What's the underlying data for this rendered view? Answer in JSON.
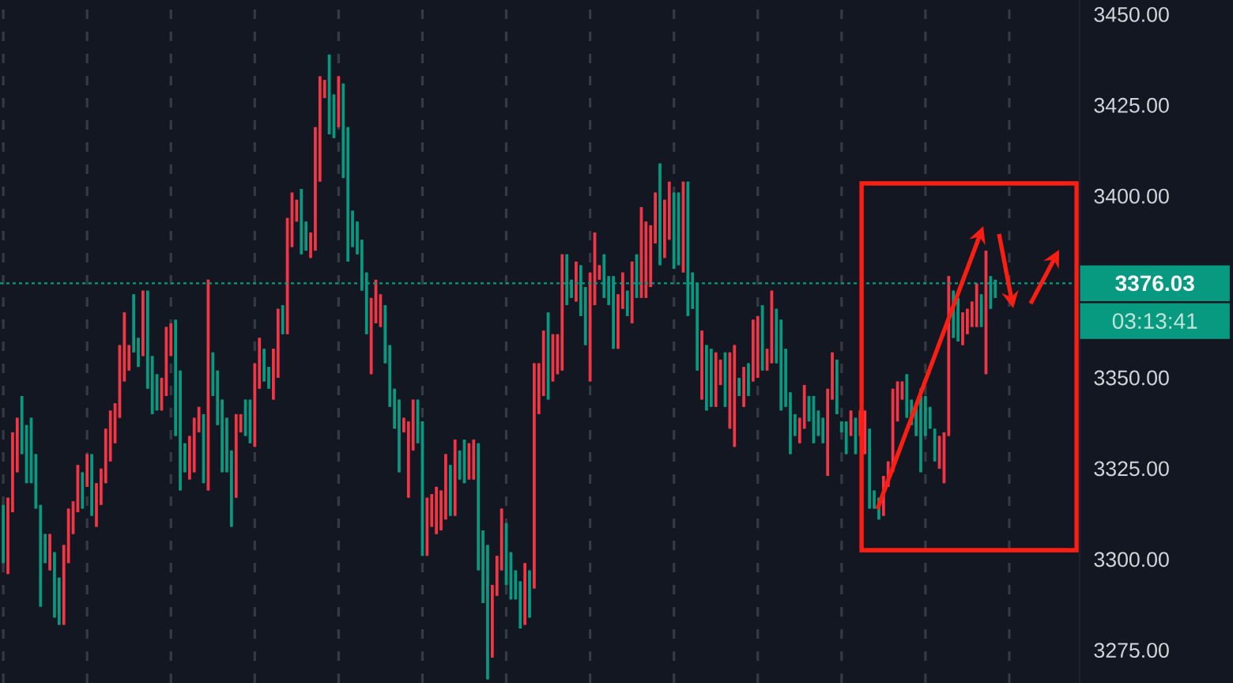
{
  "chart_data": {
    "type": "candlestick",
    "categories": [
      null,
      null,
      null,
      null,
      null,
      null,
      null,
      null,
      null,
      null,
      null,
      null,
      null,
      null,
      null,
      null,
      null,
      null,
      null,
      null,
      null,
      null,
      null,
      null,
      null,
      null,
      null,
      null,
      null,
      null,
      null,
      null,
      null,
      null,
      null,
      null,
      null,
      null,
      null,
      null,
      null,
      null,
      null,
      null,
      null,
      null,
      null,
      null,
      null,
      null,
      null,
      null,
      null,
      null,
      null,
      null,
      null,
      null,
      null,
      null,
      null,
      null,
      null,
      null,
      null,
      null,
      null,
      null,
      null,
      null,
      null,
      null,
      null,
      null,
      null,
      null,
      null,
      null,
      null,
      null,
      null,
      null,
      null,
      null,
      null,
      null,
      null,
      null,
      null,
      null,
      null,
      null,
      null,
      null,
      null,
      null,
      null,
      null,
      null,
      null,
      null,
      null,
      null,
      null,
      null,
      null,
      null,
      null,
      null,
      null,
      null,
      null,
      null,
      null,
      null,
      null,
      null,
      null,
      null,
      null,
      null,
      null,
      null,
      null,
      null,
      null,
      null,
      null,
      null,
      null,
      null,
      null,
      null,
      null,
      null,
      null,
      null,
      null,
      null,
      null,
      null,
      null,
      null,
      null,
      null,
      null,
      null,
      null,
      null,
      null,
      null,
      null,
      null,
      null,
      null,
      null,
      null,
      null,
      null,
      null,
      null,
      null,
      null,
      null,
      null,
      null,
      null,
      null,
      null,
      null,
      null,
      null,
      null,
      null,
      null,
      null,
      null,
      null,
      null,
      null,
      null,
      null,
      null,
      null,
      null,
      null,
      null,
      null,
      null,
      null,
      null,
      null,
      null,
      null,
      null,
      null,
      null,
      null,
      null,
      null,
      null,
      null,
      null,
      null,
      null,
      null,
      null,
      null,
      null,
      null,
      null,
      null,
      null,
      null
    ],
    "ohlc": [
      [
        3315,
        3315,
        3299,
        3299
      ],
      [
        3296,
        3317,
        3296,
        3317
      ],
      [
        3313,
        3335,
        3313,
        3335
      ],
      [
        3324,
        3339,
        3324,
        3339
      ],
      [
        3345,
        3345,
        3329,
        3329
      ],
      [
        3337,
        3337,
        3321,
        3321
      ],
      [
        3339,
        3339,
        3321,
        3321
      ],
      [
        3329,
        3329,
        3314,
        3314
      ],
      [
        3315,
        3315,
        3287,
        3287
      ],
      [
        3307,
        3307,
        3299,
        3299
      ],
      [
        3297,
        3307,
        3297,
        3307
      ],
      [
        3302,
        3302,
        3284,
        3284
      ],
      [
        3295,
        3295,
        3282,
        3282
      ],
      [
        3282,
        3304,
        3282,
        3304
      ],
      [
        3299,
        3314,
        3299,
        3314
      ],
      [
        3307,
        3316,
        3307,
        3316
      ],
      [
        3313,
        3326,
        3313,
        3326
      ],
      [
        3324,
        3324,
        3314,
        3314
      ],
      [
        3320,
        3329,
        3320,
        3329
      ],
      [
        3329,
        3329,
        3312,
        3312
      ],
      [
        3309,
        3321,
        3309,
        3321
      ],
      [
        3315,
        3325,
        3315,
        3325
      ],
      [
        3321,
        3336,
        3321,
        3336
      ],
      [
        3327,
        3341,
        3327,
        3341
      ],
      [
        3332,
        3343,
        3332,
        3343
      ],
      [
        3339,
        3359,
        3339,
        3359
      ],
      [
        3349,
        3368,
        3349,
        3368
      ],
      [
        3352,
        3359,
        3352,
        3359
      ],
      [
        3373,
        3373,
        3357,
        3357
      ],
      [
        3361,
        3361,
        3353,
        3353
      ],
      [
        3356,
        3374,
        3356,
        3374
      ],
      [
        3374,
        3374,
        3347,
        3347
      ],
      [
        3356,
        3356,
        3340,
        3340
      ],
      [
        3351,
        3351,
        3341,
        3341
      ],
      [
        3341,
        3350,
        3341,
        3350
      ],
      [
        3345,
        3364,
        3345,
        3364
      ],
      [
        3356,
        3365,
        3356,
        3365
      ],
      [
        3366,
        3366,
        3334,
        3334
      ],
      [
        3352,
        3352,
        3319,
        3319
      ],
      [
        3332,
        3332,
        3324,
        3324
      ],
      [
        3322,
        3334,
        3322,
        3334
      ],
      [
        3324,
        3339,
        3324,
        3339
      ],
      [
        3335,
        3342,
        3335,
        3342
      ],
      [
        3340,
        3340,
        3321,
        3321
      ],
      [
        3319,
        3377,
        3319,
        3377
      ],
      [
        3357,
        3357,
        3345,
        3345
      ],
      [
        3352,
        3352,
        3337,
        3337
      ],
      [
        3344,
        3344,
        3324,
        3324
      ],
      [
        3339,
        3339,
        3324,
        3324
      ],
      [
        3330,
        3330,
        3309,
        3309
      ],
      [
        3317,
        3340,
        3317,
        3340
      ],
      [
        3335,
        3340,
        3335,
        3340
      ],
      [
        3344,
        3344,
        3334,
        3334
      ],
      [
        3344,
        3344,
        3332,
        3332
      ],
      [
        3331,
        3354,
        3331,
        3354
      ],
      [
        3347,
        3361,
        3347,
        3361
      ],
      [
        3358,
        3358,
        3349,
        3349
      ],
      [
        3353,
        3353,
        3347,
        3347
      ],
      [
        3344,
        3358,
        3344,
        3358
      ],
      [
        3350,
        3369,
        3350,
        3369
      ],
      [
        3370,
        3370,
        3362,
        3362
      ],
      [
        3362,
        3394,
        3362,
        3394
      ],
      [
        3386,
        3401,
        3386,
        3401
      ],
      [
        3393,
        3399,
        3393,
        3399
      ],
      [
        3402,
        3402,
        3384,
        3384
      ],
      [
        3393,
        3393,
        3385,
        3385
      ],
      [
        3383,
        3390,
        3383,
        3390
      ],
      [
        3385,
        3419,
        3385,
        3419
      ],
      [
        3404,
        3433,
        3404,
        3433
      ],
      [
        3427,
        3432,
        3427,
        3432
      ],
      [
        3439,
        3439,
        3417,
        3417
      ],
      [
        3428,
        3428,
        3416,
        3416
      ],
      [
        3419,
        3433,
        3419,
        3433
      ],
      [
        3431,
        3431,
        3405,
        3405
      ],
      [
        3419,
        3419,
        3382,
        3382
      ],
      [
        3396,
        3396,
        3386,
        3386
      ],
      [
        3393,
        3393,
        3384,
        3384
      ],
      [
        3388,
        3388,
        3374,
        3374
      ],
      [
        3379,
        3379,
        3362,
        3362
      ],
      [
        3351,
        3372,
        3351,
        3372
      ],
      [
        3365,
        3377,
        3365,
        3377
      ],
      [
        3364,
        3373,
        3364,
        3373
      ],
      [
        3370,
        3370,
        3354,
        3354
      ],
      [
        3359,
        3359,
        3342,
        3342
      ],
      [
        3347,
        3347,
        3336,
        3336
      ],
      [
        3344,
        3344,
        3324,
        3324
      ],
      [
        3335,
        3339,
        3335,
        3339
      ],
      [
        3317,
        3338,
        3317,
        3338
      ],
      [
        3330,
        3344,
        3330,
        3344
      ],
      [
        3344,
        3344,
        3332,
        3332
      ],
      [
        3338,
        3338,
        3301,
        3301
      ],
      [
        3301,
        3317,
        3301,
        3317
      ],
      [
        3309,
        3318,
        3309,
        3318
      ],
      [
        3307,
        3320,
        3307,
        3320
      ],
      [
        3308,
        3319,
        3308,
        3319
      ],
      [
        3311,
        3329,
        3311,
        3329
      ],
      [
        3326,
        3326,
        3312,
        3312
      ],
      [
        3312,
        3333,
        3312,
        3333
      ],
      [
        3330,
        3330,
        3322,
        3322
      ],
      [
        3333,
        3333,
        3321,
        3321
      ],
      [
        3322,
        3332,
        3322,
        3332
      ],
      [
        3322,
        3333,
        3322,
        3333
      ],
      [
        3332,
        3332,
        3297,
        3297
      ],
      [
        3308,
        3308,
        3288,
        3288
      ],
      [
        3304,
        3304,
        3267,
        3267
      ],
      [
        3273,
        3293,
        3273,
        3293
      ],
      [
        3290,
        3301,
        3290,
        3301
      ],
      [
        3297,
        3314,
        3297,
        3314
      ],
      [
        3310,
        3310,
        3293,
        3293
      ],
      [
        3302,
        3302,
        3289,
        3289
      ],
      [
        3297,
        3297,
        3289,
        3289
      ],
      [
        3294,
        3294,
        3281,
        3281
      ],
      [
        3282,
        3299,
        3282,
        3299
      ],
      [
        3297,
        3297,
        3284,
        3284
      ],
      [
        3292,
        3354,
        3292,
        3354
      ],
      [
        3340,
        3354,
        3340,
        3354
      ],
      [
        3345,
        3363,
        3345,
        3363
      ],
      [
        3368,
        3368,
        3344,
        3344
      ],
      [
        3349,
        3362,
        3349,
        3362
      ],
      [
        3351,
        3362,
        3351,
        3362
      ],
      [
        3352,
        3384,
        3352,
        3384
      ],
      [
        3384,
        3384,
        3370,
        3370
      ],
      [
        3377,
        3377,
        3372,
        3372
      ],
      [
        3371,
        3382,
        3371,
        3382
      ],
      [
        3381,
        3381,
        3367,
        3367
      ],
      [
        3375,
        3375,
        3359,
        3359
      ],
      [
        3349,
        3379,
        3349,
        3379
      ],
      [
        3370,
        3390,
        3370,
        3390
      ],
      [
        3377,
        3381,
        3377,
        3381
      ],
      [
        3384,
        3384,
        3372,
        3372
      ],
      [
        3378,
        3378,
        3370,
        3370
      ],
      [
        3378,
        3378,
        3358,
        3358
      ],
      [
        3358,
        3373,
        3358,
        3373
      ],
      [
        3369,
        3379,
        3369,
        3379
      ],
      [
        3374,
        3374,
        3367,
        3367
      ],
      [
        3365,
        3382,
        3365,
        3382
      ],
      [
        3384,
        3384,
        3372,
        3372
      ],
      [
        3372,
        3397,
        3372,
        3397
      ],
      [
        3372,
        3393,
        3372,
        3393
      ],
      [
        3375,
        3392,
        3375,
        3392
      ],
      [
        3387,
        3401,
        3387,
        3401
      ],
      [
        3409,
        3409,
        3381,
        3381
      ],
      [
        3383,
        3399,
        3383,
        3399
      ],
      [
        3388,
        3404,
        3388,
        3404
      ],
      [
        3401,
        3401,
        3380,
        3380
      ],
      [
        3401,
        3401,
        3381,
        3381
      ],
      [
        3379,
        3404,
        3379,
        3404
      ],
      [
        3404,
        3404,
        3367,
        3367
      ],
      [
        3379,
        3379,
        3369,
        3369
      ],
      [
        3376,
        3376,
        3352,
        3352
      ],
      [
        3344,
        3363,
        3344,
        3363
      ],
      [
        3359,
        3359,
        3341,
        3341
      ],
      [
        3358,
        3358,
        3342,
        3342
      ],
      [
        3342,
        3357,
        3342,
        3357
      ],
      [
        3348,
        3355,
        3348,
        3355
      ],
      [
        3357,
        3357,
        3342,
        3342
      ],
      [
        3336,
        3357,
        3336,
        3357
      ],
      [
        3331,
        3359,
        3331,
        3359
      ],
      [
        3350,
        3350,
        3345,
        3345
      ],
      [
        3342,
        3353,
        3342,
        3353
      ],
      [
        3354,
        3354,
        3345,
        3345
      ],
      [
        3349,
        3366,
        3349,
        3366
      ],
      [
        3350,
        3367,
        3350,
        3367
      ],
      [
        3370,
        3370,
        3352,
        3352
      ],
      [
        3352,
        3358,
        3352,
        3358
      ],
      [
        3354,
        3374,
        3354,
        3374
      ],
      [
        3369,
        3369,
        3354,
        3354
      ],
      [
        3366,
        3366,
        3341,
        3341
      ],
      [
        3358,
        3358,
        3342,
        3342
      ],
      [
        3346,
        3346,
        3329,
        3329
      ],
      [
        3340,
        3340,
        3334,
        3334
      ],
      [
        3332,
        3339,
        3332,
        3339
      ],
      [
        3336,
        3348,
        3336,
        3348
      ],
      [
        3345,
        3345,
        3338,
        3338
      ],
      [
        3345,
        3345,
        3332,
        3332
      ],
      [
        3341,
        3341,
        3334,
        3334
      ],
      [
        3339,
        3339,
        3332,
        3332
      ],
      [
        3323,
        3347,
        3323,
        3347
      ],
      [
        3344,
        3357,
        3344,
        3357
      ],
      [
        3355,
        3355,
        3340,
        3340
      ],
      [
        3338,
        3338,
        3335,
        3335
      ],
      [
        3338,
        3338,
        3329,
        3329
      ],
      [
        3334,
        3341,
        3334,
        3341
      ],
      [
        3339,
        3339,
        3329,
        3329
      ],
      [
        3334,
        3341,
        3334,
        3341
      ],
      [
        3329,
        3341,
        3329,
        3341
      ],
      [
        3336,
        3336,
        3314,
        3314
      ],
      [
        3319,
        3319,
        3314,
        3314
      ],
      [
        3317,
        3317,
        3311,
        3311
      ],
      [
        3312,
        3323,
        3312,
        3323
      ],
      [
        3320,
        3327,
        3320,
        3327
      ],
      [
        3324,
        3347,
        3324,
        3347
      ],
      [
        3338,
        3349,
        3338,
        3349
      ],
      [
        3344,
        3349,
        3344,
        3349
      ],
      [
        3351,
        3351,
        3339,
        3339
      ],
      [
        3344,
        3344,
        3337,
        3337
      ],
      [
        3342,
        3342,
        3334,
        3334
      ],
      [
        3347,
        3347,
        3324,
        3324
      ],
      [
        3345,
        3345,
        3334,
        3334
      ],
      [
        3342,
        3342,
        3336,
        3336
      ],
      [
        3336,
        3336,
        3327,
        3327
      ],
      [
        3325,
        3334,
        3325,
        3334
      ],
      [
        3321,
        3335,
        3321,
        3335
      ],
      [
        3334,
        3378,
        3334,
        3378
      ],
      [
        3374,
        3374,
        3361,
        3361
      ],
      [
        3372,
        3372,
        3360,
        3360
      ],
      [
        3359,
        3368,
        3359,
        3368
      ],
      [
        3362,
        3369,
        3362,
        3369
      ],
      [
        3364,
        3371,
        3364,
        3371
      ],
      [
        3364,
        3376,
        3364,
        3376
      ],
      [
        3373,
        3373,
        3364,
        3364
      ],
      [
        3351,
        3385,
        3351,
        3385
      ],
      [
        3378,
        3378,
        3369,
        3369
      ],
      [
        3377,
        3377,
        3372,
        3372
      ]
    ],
    "colors": [
      "#089981",
      "#f23645",
      "#f23645",
      "#f23645",
      "#089981",
      "#089981",
      "#089981",
      "#089981",
      "#089981",
      "#089981",
      "#f23645",
      "#089981",
      "#089981",
      "#f23645",
      "#f23645",
      "#f23645",
      "#f23645",
      "#089981",
      "#f23645",
      "#089981",
      "#f23645",
      "#f23645",
      "#f23645",
      "#f23645",
      "#f23645",
      "#f23645",
      "#f23645",
      "#f23645",
      "#089981",
      "#089981",
      "#f23645",
      "#089981",
      "#089981",
      "#089981",
      "#f23645",
      "#f23645",
      "#f23645",
      "#089981",
      "#089981",
      "#089981",
      "#f23645",
      "#f23645",
      "#f23645",
      "#089981",
      "#f23645",
      "#089981",
      "#089981",
      "#089981",
      "#089981",
      "#089981",
      "#f23645",
      "#f23645",
      "#089981",
      "#089981",
      "#f23645",
      "#f23645",
      "#089981",
      "#089981",
      "#f23645",
      "#f23645",
      "#089981",
      "#f23645",
      "#f23645",
      "#f23645",
      "#089981",
      "#089981",
      "#f23645",
      "#f23645",
      "#f23645",
      "#f23645",
      "#089981",
      "#089981",
      "#f23645",
      "#089981",
      "#089981",
      "#089981",
      "#089981",
      "#089981",
      "#089981",
      "#f23645",
      "#f23645",
      "#f23645",
      "#089981",
      "#089981",
      "#089981",
      "#089981",
      "#f23645",
      "#f23645",
      "#f23645",
      "#089981",
      "#089981",
      "#f23645",
      "#f23645",
      "#f23645",
      "#f23645",
      "#f23645",
      "#089981",
      "#f23645",
      "#089981",
      "#089981",
      "#f23645",
      "#f23645",
      "#089981",
      "#089981",
      "#089981",
      "#f23645",
      "#f23645",
      "#f23645",
      "#089981",
      "#089981",
      "#089981",
      "#089981",
      "#f23645",
      "#089981",
      "#f23645",
      "#f23645",
      "#f23645",
      "#089981",
      "#f23645",
      "#f23645",
      "#f23645",
      "#089981",
      "#089981",
      "#f23645",
      "#089981",
      "#089981",
      "#f23645",
      "#f23645",
      "#f23645",
      "#089981",
      "#089981",
      "#089981",
      "#f23645",
      "#f23645",
      "#089981",
      "#f23645",
      "#089981",
      "#f23645",
      "#f23645",
      "#f23645",
      "#f23645",
      "#089981",
      "#f23645",
      "#f23645",
      "#089981",
      "#089981",
      "#f23645",
      "#089981",
      "#089981",
      "#089981",
      "#f23645",
      "#089981",
      "#089981",
      "#f23645",
      "#f23645",
      "#089981",
      "#f23645",
      "#f23645",
      "#089981",
      "#f23645",
      "#089981",
      "#f23645",
      "#f23645",
      "#089981",
      "#f23645",
      "#f23645",
      "#089981",
      "#089981",
      "#089981",
      "#089981",
      "#089981",
      "#f23645",
      "#f23645",
      "#089981",
      "#089981",
      "#089981",
      "#089981",
      "#f23645",
      "#f23645",
      "#089981",
      "#089981",
      "#089981",
      "#f23645",
      "#089981",
      "#f23645",
      "#f23645",
      "#089981",
      "#089981",
      "#089981",
      "#f23645",
      "#f23645",
      "#f23645",
      "#f23645",
      "#f23645",
      "#089981",
      "#089981",
      "#089981",
      "#089981",
      "#089981",
      "#089981",
      "#089981",
      "#f23645",
      "#f23645",
      "#f23645",
      "#089981",
      "#089981",
      "#f23645",
      "#f23645",
      "#f23645",
      "#f23645",
      "#089981",
      "#f23645",
      "#089981",
      "#089981"
    ],
    "ylim": [
      3266,
      3454
    ],
    "yticks": [
      {
        "value": 3275,
        "label": "3275.00"
      },
      {
        "value": 3300,
        "label": "3300.00"
      },
      {
        "value": 3325,
        "label": "3325.00"
      },
      {
        "value": 3350,
        "label": "3350.00"
      },
      {
        "value": 3400,
        "label": "3400.00"
      },
      {
        "value": 3425,
        "label": "3425.00"
      },
      {
        "value": 3450,
        "label": "3450.00"
      }
    ],
    "ref_lines": [
      {
        "axis": "y",
        "value": 3376.03,
        "label": "3376.03",
        "color": "#089981",
        "line_style": "dotted"
      }
    ],
    "annotations": [
      "03:13:41"
    ],
    "grid": "x"
  }
}
